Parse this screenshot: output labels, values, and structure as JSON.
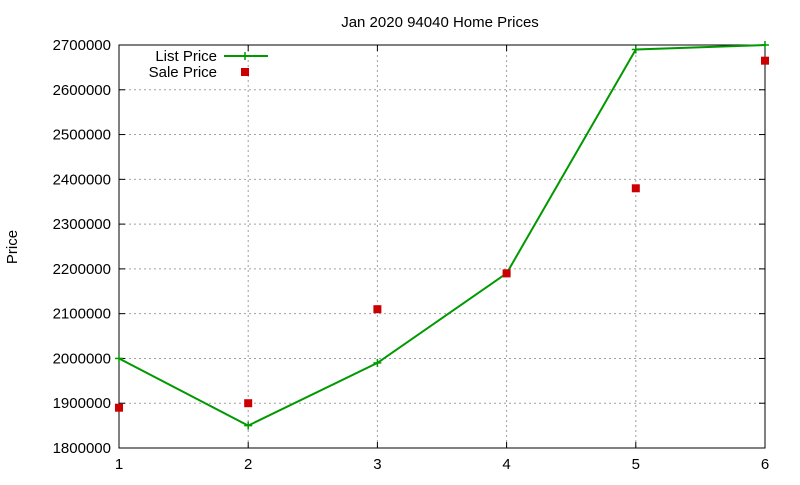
{
  "chart_data": {
    "type": "line",
    "title": "Jan 2020 94040 Home Prices",
    "xlabel": "",
    "ylabel": "Price",
    "xlim": [
      1,
      6
    ],
    "ylim": [
      1800000,
      2700000
    ],
    "x_ticks": [
      "1",
      "2",
      "3",
      "4",
      "5",
      "6"
    ],
    "y_ticks": [
      "1800000",
      "1900000",
      "2000000",
      "2100000",
      "2200000",
      "2300000",
      "2400000",
      "2500000",
      "2600000",
      "2700000"
    ],
    "grid": true,
    "legend_position": "top-left",
    "series": [
      {
        "name": "List Price",
        "style": "line-with-plus-markers",
        "color": "#009900",
        "x": [
          1,
          2,
          3,
          4,
          5,
          6
        ],
        "y": [
          2000000,
          1850000,
          1990000,
          2190000,
          2690000,
          2700000
        ]
      },
      {
        "name": "Sale Price",
        "style": "square-markers",
        "color": "#cc0000",
        "x": [
          1,
          2,
          3,
          4,
          5,
          6
        ],
        "y": [
          1890000,
          1900000,
          2110000,
          2190000,
          2380000,
          2665000
        ]
      }
    ]
  }
}
